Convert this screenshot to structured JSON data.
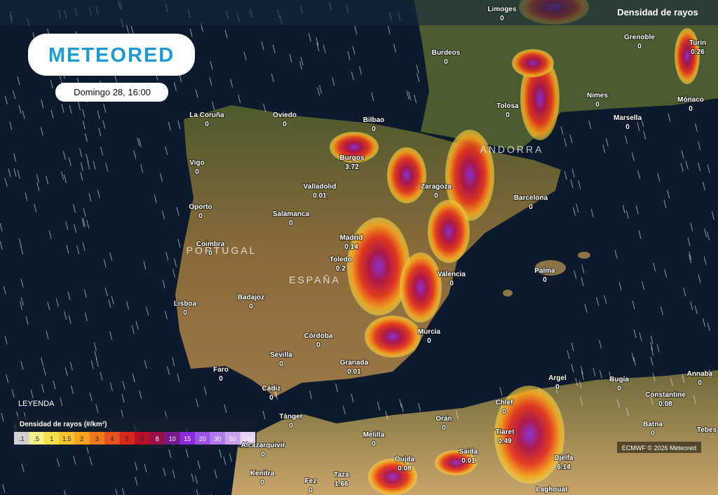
{
  "header": {
    "title": "Densidad de rayos"
  },
  "logo": "METEORED",
  "date": "Domingo 28, 16:00",
  "legend": {
    "heading": "LEYENDA",
    "title": "Densidad de rayos (#/km²)",
    "labels": [
      ".1",
      ".5",
      "1",
      "1.5",
      "2",
      "3",
      "4",
      "5",
      "6",
      "8",
      "10",
      "15",
      "20",
      "30",
      "50",
      "100"
    ]
  },
  "credit": "ECMWF © 2026 Meteored",
  "regions": [
    "PORTUGAL",
    "ESPAÑA",
    "ANDORRA"
  ],
  "cities": [
    {
      "name": "Limoges",
      "value": 0
    },
    {
      "name": "Grenoble",
      "value": 0
    },
    {
      "name": "Turín",
      "value": 0.26
    },
    {
      "name": "Burdeos",
      "value": 0
    },
    {
      "name": "Tolosa",
      "value": 0
    },
    {
      "name": "Nimes",
      "value": 0
    },
    {
      "name": "Mónaco",
      "value": 0
    },
    {
      "name": "Marsella",
      "value": 0
    },
    {
      "name": "La Coruña",
      "value": 0
    },
    {
      "name": "Oviedo",
      "value": 0
    },
    {
      "name": "Bilbao",
      "value": 0
    },
    {
      "name": "Vigo",
      "value": 0
    },
    {
      "name": "Burgos",
      "value": 3.72
    },
    {
      "name": "Zaragoza",
      "value": 0
    },
    {
      "name": "Valladolid",
      "value": 0.01
    },
    {
      "name": "Barcelona",
      "value": 0
    },
    {
      "name": "Oporto",
      "value": 0
    },
    {
      "name": "Salamanca",
      "value": 0
    },
    {
      "name": "Madrid",
      "value": 0.14
    },
    {
      "name": "Coimbra",
      "value": 0
    },
    {
      "name": "Toledo",
      "value": 0.2
    },
    {
      "name": "Palma",
      "value": 0
    },
    {
      "name": "Valencia",
      "value": 0
    },
    {
      "name": "Badajoz",
      "value": 0
    },
    {
      "name": "Lisboa",
      "value": 0
    },
    {
      "name": "Murcia",
      "value": 0
    },
    {
      "name": "Córdoba",
      "value": 0
    },
    {
      "name": "Sevilla",
      "value": 0
    },
    {
      "name": "Granada",
      "value": 0.01
    },
    {
      "name": "Faro",
      "value": 0
    },
    {
      "name": "Argel",
      "value": 0
    },
    {
      "name": "Bugía",
      "value": 0
    },
    {
      "name": "Annaba",
      "value": 0
    },
    {
      "name": "Cádiz",
      "value": 0
    },
    {
      "name": "Constantine",
      "value": 0.08
    },
    {
      "name": "Chlef",
      "value": 0
    },
    {
      "name": "Tánger",
      "value": 0
    },
    {
      "name": "Orán",
      "value": 0
    },
    {
      "name": "Batna",
      "value": 0
    },
    {
      "name": "Tebes"
    },
    {
      "name": "Tiaret",
      "value": 0.49
    },
    {
      "name": "Melilla",
      "value": 0
    },
    {
      "name": "Alcazarquivir",
      "value": 0
    },
    {
      "name": "Saida",
      "value": 0.01
    },
    {
      "name": "Oujda",
      "value": 0.08
    },
    {
      "name": "Djelfa",
      "value": 6.14
    },
    {
      "name": "Kenitra",
      "value": 0
    },
    {
      "name": "Taza",
      "value": 1.66
    },
    {
      "name": "Fez",
      "value": 0
    },
    {
      "name": "Laghouat"
    }
  ]
}
